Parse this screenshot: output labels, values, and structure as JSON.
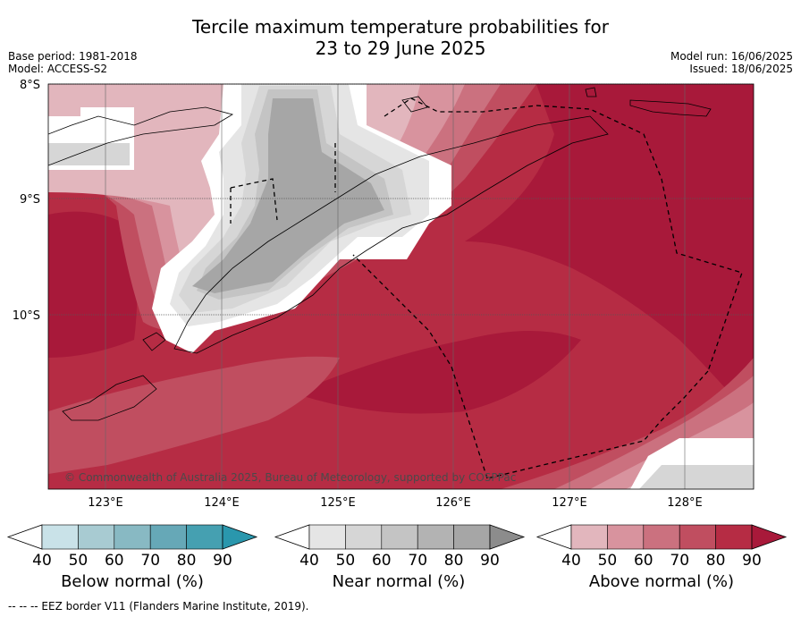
{
  "title_line1": "Tercile maximum temperature probabilities for",
  "title_line2": "23 to 29 June 2025",
  "meta_left": {
    "base_period": "Base period: 1981-2018",
    "model": "Model: ACCESS-S2"
  },
  "meta_right": {
    "model_run": "Model run: 16/06/2025",
    "issued": "Issued: 18/06/2025"
  },
  "lat_labels": [
    "8°S",
    "9°S",
    "10°S"
  ],
  "lon_labels": [
    "123°E",
    "124°E",
    "125°E",
    "126°E",
    "127°E",
    "128°E"
  ],
  "copyright": "© Commonwealth of Australia 2025, Bureau of Meteorology, supported by COSPPac",
  "legends": {
    "below": {
      "title": "Below normal (%)",
      "ticks": [
        "40",
        "50",
        "60",
        "70",
        "80",
        "90"
      ],
      "colors": [
        "#c9e2e8",
        "#a8cbd2",
        "#88b9c3",
        "#66a8b7",
        "#45a0b1",
        "#2a97ad"
      ]
    },
    "near": {
      "title": "Near normal (%)",
      "ticks": [
        "40",
        "50",
        "60",
        "70",
        "80",
        "90"
      ],
      "colors": [
        "#e5e5e5",
        "#d6d6d6",
        "#c4c4c4",
        "#b3b3b3",
        "#a6a6a6",
        "#8c8c8c"
      ]
    },
    "above": {
      "title": "Above normal (%)",
      "ticks": [
        "40",
        "50",
        "60",
        "70",
        "80",
        "90"
      ],
      "colors": [
        "#e2b6bd",
        "#d8939e",
        "#cb717f",
        "#c04e60",
        "#b62c44",
        "#a8193a"
      ]
    }
  },
  "footnote": "--  --  -- EEZ border V11 (Flanders Marine Institute, 2019)."
}
